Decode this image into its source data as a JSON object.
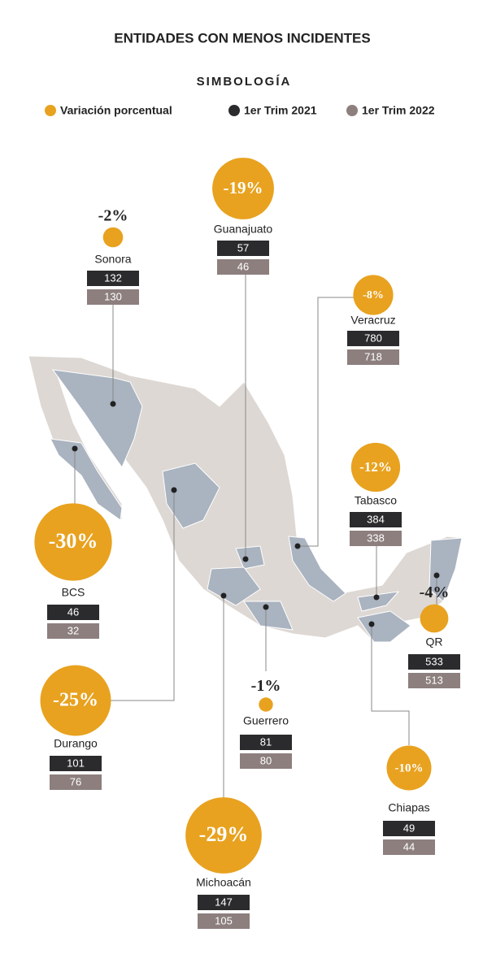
{
  "header": {
    "title": "ENTIDADES CON MENOS INCIDENTES"
  },
  "legend": {
    "title": "SIMBOLOGÍA",
    "items": [
      "Variación porcentual",
      "1er Trim 2021",
      "1er Trim 2022"
    ]
  },
  "entities": [
    {
      "name": "Sonora",
      "variation": {
        "value": -2,
        "label": "-2%"
      },
      "trim_2021": 132,
      "trim_2022": 130
    },
    {
      "name": "Guanajuato",
      "variation": {
        "value": -19,
        "label": "-19%"
      },
      "trim_2021": 57,
      "trim_2022": 46
    },
    {
      "name": "Veracruz",
      "variation": {
        "value": -8,
        "label": "-8%"
      },
      "trim_2021": 780,
      "trim_2022": 718
    },
    {
      "name": "Tabasco",
      "variation": {
        "value": -12,
        "label": "-12%"
      },
      "trim_2021": 384,
      "trim_2022": 338
    },
    {
      "name": "QR",
      "variation": {
        "value": -4,
        "label": "-4%"
      },
      "trim_2021": 533,
      "trim_2022": 513
    },
    {
      "name": "Chiapas",
      "variation": {
        "value": -10,
        "label": "-10%"
      },
      "trim_2021": 49,
      "trim_2022": 44
    },
    {
      "name": "Guerrero",
      "variation": {
        "value": -1,
        "label": "-1%"
      },
      "trim_2021": 81,
      "trim_2022": 80
    },
    {
      "name": "Michoacán",
      "variation": {
        "value": -29,
        "label": "-29%"
      },
      "trim_2021": 147,
      "trim_2022": 105
    },
    {
      "name": "Durango",
      "variation": {
        "value": -25,
        "label": "-25%"
      },
      "trim_2021": 101,
      "trim_2022": 76
    },
    {
      "name": "BCS",
      "variation": {
        "value": -30,
        "label": "-30%"
      },
      "trim_2021": 46,
      "trim_2022": 32
    }
  ]
}
